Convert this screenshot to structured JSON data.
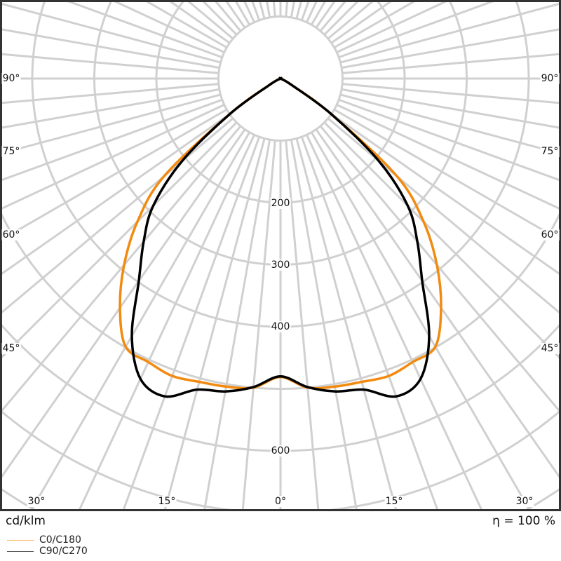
{
  "chart_data": {
    "type": "polar-line",
    "unit_label": "cd/klm",
    "efficiency_label": "η = 100 %",
    "angle_labels": [
      "90°",
      "75°",
      "60°",
      "45°",
      "30°",
      "15°",
      "0°",
      "15°",
      "30°",
      "45°",
      "60°",
      "75°",
      "90°"
    ],
    "radial_tick_labels": [
      "200",
      "300",
      "400",
      "600"
    ],
    "radial_max_visible": 800,
    "grid": true,
    "angles_deg": [
      0,
      5,
      10,
      15,
      20,
      25,
      30,
      35,
      40,
      45,
      50,
      55,
      60,
      65,
      70,
      75,
      80,
      85,
      90
    ],
    "series": [
      {
        "name": "C0/C180",
        "color": "#f28a10",
        "values": [
          481,
          500,
          504,
          506,
          510,
          504,
          499,
          451,
          392,
          326,
          245,
          100,
          20,
          0,
          0,
          0,
          0,
          0,
          0
        ]
      },
      {
        "name": "C90/C270",
        "color": "#000000",
        "values": [
          480,
          499,
          512,
          519,
          545,
          534,
          479,
          398,
          343,
          290,
          207,
          100,
          20,
          0,
          0,
          0,
          0,
          0,
          0
        ]
      }
    ],
    "legend_placement": "bottom-left"
  }
}
